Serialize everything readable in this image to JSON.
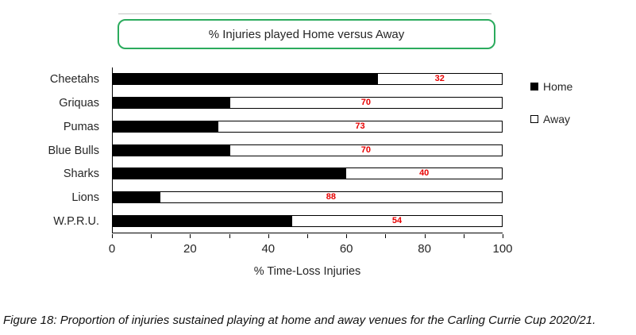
{
  "title_box": {
    "text": "% Injuries played Home versus Away",
    "border_color": "#2bab5d"
  },
  "chart_data": {
    "type": "bar",
    "orientation": "horizontal",
    "stacked": true,
    "title": "% Injuries played Home versus Away",
    "categories": [
      "Cheetahs",
      "Griquas",
      "Pumas",
      "Blue Bulls",
      "Sharks",
      "Lions",
      "W.P.R.U."
    ],
    "series": [
      {
        "name": "Home",
        "color": "#000000",
        "values": [
          68,
          30,
          27,
          30,
          60,
          12,
          46
        ]
      },
      {
        "name": "Away",
        "color": "#ffffff",
        "values": [
          32,
          70,
          73,
          70,
          40,
          88,
          54
        ]
      }
    ],
    "data_labels": {
      "on_series": "Away",
      "color": "#e60000",
      "values": [
        32,
        70,
        73,
        70,
        40,
        88,
        54
      ]
    },
    "xlabel": "% Time-Loss Injuries",
    "xlim": [
      0,
      100
    ],
    "x_ticks": [
      0,
      20,
      40,
      60,
      80,
      100
    ],
    "minor_tick_step": 10,
    "legend_position": "right",
    "grid": false
  },
  "legend": {
    "items": [
      {
        "label": "Home",
        "swatch": "filled-black"
      },
      {
        "label": "Away",
        "swatch": "outlined-white"
      }
    ]
  },
  "caption": "Figure 18: Proportion of injuries sustained playing at home and away venues for the Carling Currie Cup 2020/21."
}
